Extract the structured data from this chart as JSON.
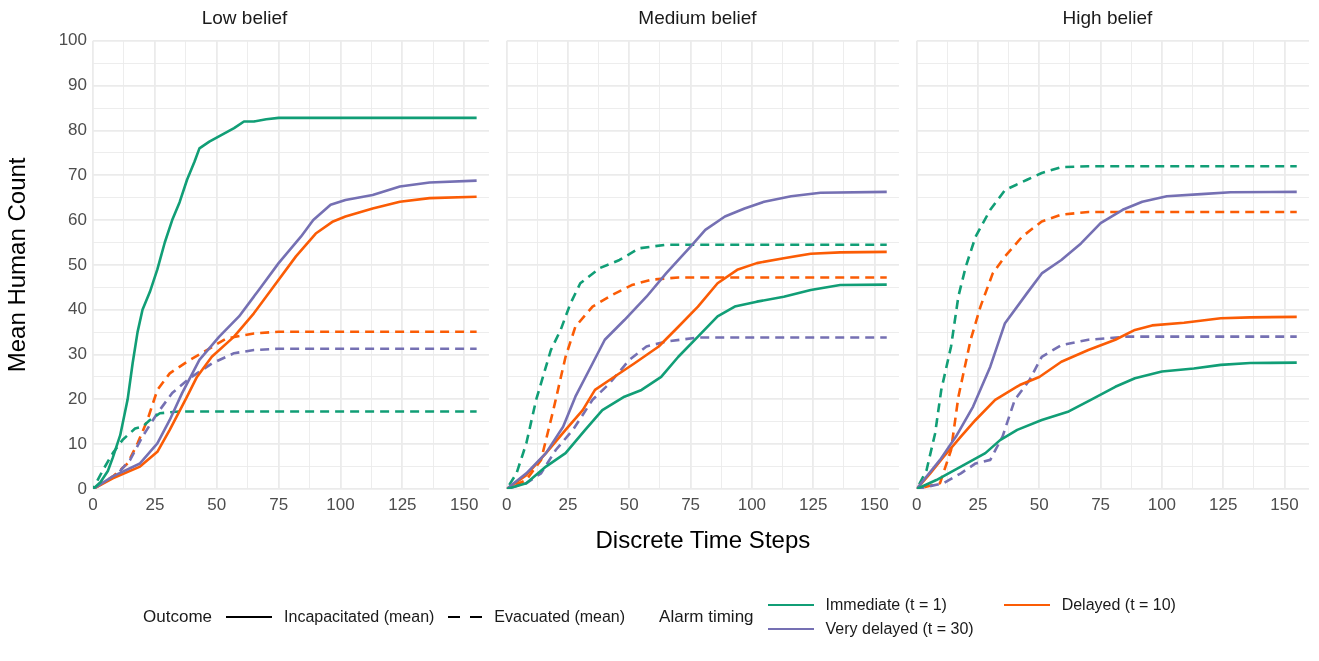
{
  "chart_data": [
    {
      "type": "line",
      "title": "Low belief",
      "ylabel": "Mean Human Count",
      "xlim": [
        0,
        160
      ],
      "ylim": [
        0,
        100
      ],
      "xticks": [
        0,
        {
          "value": 12.5,
          "label": null
        },
        25,
        {
          "value": 37.5,
          "label": null
        },
        50,
        {
          "value": 62.5,
          "label": null
        },
        75,
        {
          "value": 87.5,
          "label": null
        },
        100,
        {
          "value": 112.5,
          "label": null
        },
        125,
        {
          "value": 137.5,
          "label": null
        },
        150
      ],
      "yticks": [
        0,
        {
          "value": 5,
          "label": null
        },
        10,
        {
          "value": 15,
          "label": null
        },
        20,
        {
          "value": 25,
          "label": null
        },
        30,
        {
          "value": 35,
          "label": null
        },
        40,
        {
          "value": 45,
          "label": null
        },
        50,
        {
          "value": 55,
          "label": null
        },
        60,
        {
          "value": 65,
          "label": null
        },
        70,
        {
          "value": 75,
          "label": null
        },
        80,
        {
          "value": 85,
          "label": null
        },
        90,
        {
          "value": 95,
          "label": null
        },
        100
      ],
      "grid": true,
      "legend": "bottom",
      "legend_title": "Alarm timing",
      "annotations": [
        "Outcome",
        "Incapacitated (mean)",
        "Evacuated (mean)"
      ],
      "series": [
        {
          "name": "Immediate (t = 1)",
          "color": "#119e76",
          "line_style": "solid",
          "x": [
            0,
            3,
            6,
            8,
            11,
            14,
            16,
            18,
            20,
            23,
            26,
            29,
            32,
            35,
            38,
            41,
            43,
            47,
            52,
            57,
            61,
            65,
            70,
            75,
            155
          ],
          "values": [
            0,
            1.5,
            4,
            7,
            12,
            20,
            28,
            35,
            40,
            44,
            49,
            55,
            60,
            64,
            69,
            73,
            76,
            77.5,
            79,
            80.5,
            82,
            82,
            82.5,
            82.8,
            82.8
          ]
        },
        {
          "name": "Very delayed (t = 30)",
          "color": "#7570b3",
          "line_style": "solid",
          "x": [
            0,
            8,
            19,
            26,
            31,
            36,
            43,
            51,
            59,
            67,
            75,
            84,
            89,
            96,
            102,
            113,
            124,
            136,
            155
          ],
          "values": [
            0,
            2.8,
            5.7,
            10.2,
            15.4,
            21.4,
            28.8,
            34,
            38.5,
            44.4,
            50.4,
            56.3,
            60,
            63.4,
            64.5,
            65.6,
            67.5,
            68.4,
            68.8
          ]
        },
        {
          "name": "Delayed (t = 10)",
          "color": "#fb5c05",
          "line_style": "solid",
          "x": [
            0,
            8,
            19,
            26,
            31,
            38,
            42,
            48,
            57,
            65,
            73,
            82,
            90,
            97,
            102,
            113,
            124,
            136,
            155
          ],
          "values": [
            0,
            2.4,
            5,
            8.3,
            13.2,
            20.6,
            25,
            29.5,
            34,
            39.2,
            45.2,
            51.9,
            57,
            59.7,
            60.8,
            62.6,
            64.1,
            64.9,
            65.2
          ]
        },
        {
          "color": "#119e76",
          "line_style": "dashed",
          "x": [
            0,
            4,
            8,
            12,
            17,
            20,
            23,
            27,
            35,
            155
          ],
          "values": [
            0,
            4.2,
            8,
            11,
            13.5,
            13.9,
            15.4,
            16.9,
            17.3,
            17.3
          ]
        },
        {
          "color": "#7570b3",
          "line_style": "dashed",
          "x": [
            0,
            9.5,
            15,
            20,
            26,
            32,
            39,
            48,
            57,
            65,
            75,
            155
          ],
          "values": [
            0,
            3.1,
            6.5,
            11.7,
            16.9,
            21.4,
            24.7,
            28,
            30.3,
            31,
            31.3,
            31.3
          ]
        },
        {
          "color": "#fb5c05",
          "line_style": "dashed",
          "x": [
            0,
            8,
            14,
            18,
            22,
            26,
            31,
            38,
            46,
            54,
            65,
            75,
            155
          ],
          "values": [
            0,
            2.8,
            5.7,
            10.2,
            15.4,
            22.1,
            25.8,
            28.4,
            31,
            33.6,
            34.7,
            35.1,
            35.1
          ]
        }
      ]
    },
    {
      "type": "line",
      "title": "Medium belief",
      "xlabel": "Discrete Time Steps",
      "xlim": [
        0,
        160
      ],
      "ylim": [
        0,
        100
      ],
      "tick_labels": "x",
      "xticks": [
        0,
        {
          "value": 12.5,
          "label": null
        },
        25,
        {
          "value": 37.5,
          "label": null
        },
        50,
        {
          "value": 62.5,
          "label": null
        },
        75,
        {
          "value": 87.5,
          "label": null
        },
        100,
        {
          "value": 112.5,
          "label": null
        },
        125,
        {
          "value": 137.5,
          "label": null
        },
        150
      ],
      "yticks": [
        0,
        {
          "value": 5,
          "label": null
        },
        10,
        {
          "value": 15,
          "label": null
        },
        20,
        {
          "value": 25,
          "label": null
        },
        30,
        {
          "value": 35,
          "label": null
        },
        40,
        {
          "value": 45,
          "label": null
        },
        50,
        {
          "value": 55,
          "label": null
        },
        60,
        {
          "value": 65,
          "label": null
        },
        70,
        {
          "value": 75,
          "label": null
        },
        80,
        {
          "value": 85,
          "label": null
        },
        90,
        {
          "value": 95,
          "label": null
        },
        100
      ],
      "grid": true,
      "series": [
        {
          "color": "#119e76",
          "line_style": "solid",
          "x": [
            0,
            8,
            16,
            24,
            32,
            39,
            48,
            55,
            63,
            70,
            78,
            86,
            93,
            102,
            113,
            124,
            136,
            155
          ],
          "values": [
            0,
            1.3,
            5,
            8,
            13.2,
            17.6,
            20.6,
            22.1,
            25,
            29.5,
            34,
            38.5,
            40.7,
            41.8,
            42.9,
            44.4,
            45.5,
            45.6
          ]
        },
        {
          "color": "#7570b3",
          "line_style": "solid",
          "x": [
            0,
            8,
            16,
            23,
            28,
            35,
            40,
            48,
            57,
            65,
            75,
            81,
            89,
            97,
            105,
            116,
            128,
            155
          ],
          "values": [
            0,
            3.5,
            8,
            13.9,
            20.6,
            28,
            33.3,
            37.7,
            42.9,
            48.1,
            54.1,
            57.8,
            60.8,
            62.6,
            64.1,
            65.3,
            66.1,
            66.3
          ]
        },
        {
          "color": "#fb5c05",
          "line_style": "solid",
          "x": [
            0,
            8,
            16,
            24,
            31,
            36,
            43,
            52,
            62,
            70,
            78,
            86,
            94,
            102,
            113,
            124,
            136,
            155
          ],
          "values": [
            0,
            3.1,
            8,
            13.2,
            17.6,
            22.1,
            24.7,
            28,
            31.8,
            36.2,
            40.7,
            45.9,
            48.9,
            50.4,
            51.5,
            52.5,
            52.8,
            52.9
          ]
        },
        {
          "color": "#119e76",
          "line_style": "dashed",
          "x": [
            0,
            4,
            8,
            12,
            18,
            22,
            26,
            30,
            38,
            46,
            54,
            65,
            155
          ],
          "values": [
            0,
            3.5,
            10.2,
            19.9,
            31,
            35.5,
            41.4,
            45.9,
            49.3,
            51.1,
            53.7,
            54.5,
            54.5
          ]
        },
        {
          "color": "#7570b3",
          "line_style": "dashed",
          "x": [
            0,
            8,
            14,
            20,
            27,
            35,
            42,
            50,
            57,
            65,
            78,
            155
          ],
          "values": [
            0,
            1.3,
            3.5,
            8.7,
            13.2,
            19.9,
            23.6,
            28.8,
            31.8,
            32.9,
            33.8,
            33.8
          ]
        },
        {
          "color": "#fb5c05",
          "line_style": "dashed",
          "x": [
            0,
            8,
            14,
            19,
            24,
            28,
            35,
            43,
            51,
            59,
            70,
            155
          ],
          "values": [
            0,
            2,
            6.5,
            17.6,
            29.5,
            36.2,
            40.7,
            43.3,
            45.5,
            46.7,
            47.2,
            47.2
          ]
        }
      ]
    },
    {
      "type": "line",
      "title": "High belief",
      "xlim": [
        0,
        160
      ],
      "ylim": [
        0,
        100
      ],
      "tick_labels": "x",
      "xticks": [
        0,
        {
          "value": 12.5,
          "label": null
        },
        25,
        {
          "value": 37.5,
          "label": null
        },
        50,
        {
          "value": 62.5,
          "label": null
        },
        75,
        {
          "value": 87.5,
          "label": null
        },
        100,
        {
          "value": 112.5,
          "label": null
        },
        125,
        {
          "value": 137.5,
          "label": null
        },
        150
      ],
      "yticks": [
        0,
        {
          "value": 5,
          "label": null
        },
        10,
        {
          "value": 15,
          "label": null
        },
        20,
        {
          "value": 25,
          "label": null
        },
        30,
        {
          "value": 35,
          "label": null
        },
        40,
        {
          "value": 45,
          "label": null
        },
        50,
        {
          "value": 55,
          "label": null
        },
        60,
        {
          "value": 65,
          "label": null
        },
        70,
        {
          "value": 75,
          "label": null
        },
        80,
        {
          "value": 85,
          "label": null
        },
        90,
        {
          "value": 95,
          "label": null
        },
        100
      ],
      "grid": true,
      "series": [
        {
          "color": "#119e76",
          "line_style": "solid",
          "x": [
            0,
            8,
            18,
            28,
            34,
            41,
            51,
            62,
            71,
            81,
            89,
            100,
            113,
            124,
            136,
            155
          ],
          "values": [
            0,
            2,
            5,
            8,
            10.9,
            13.2,
            15.4,
            17.3,
            19.9,
            22.8,
            24.7,
            26.2,
            26.9,
            27.7,
            28.1,
            28.2
          ]
        },
        {
          "color": "#7570b3",
          "line_style": "solid",
          "x": [
            0,
            4,
            9.5,
            16,
            23,
            30,
            36,
            45,
            51,
            59,
            67,
            75,
            84,
            92,
            102,
            116,
            128,
            155
          ],
          "values": [
            0,
            2.8,
            6.5,
            11.7,
            18.4,
            27.3,
            37,
            43.7,
            48.1,
            51.1,
            54.8,
            59.3,
            62.3,
            64.1,
            65.3,
            65.8,
            66.2,
            66.3
          ]
        },
        {
          "color": "#fb5c05",
          "line_style": "solid",
          "x": [
            0,
            5.5,
            11,
            18,
            24,
            32,
            42,
            50,
            59,
            70,
            81,
            89,
            96,
            109,
            124,
            136,
            155
          ],
          "values": [
            0,
            3.5,
            7.2,
            11.7,
            15.4,
            19.9,
            23.2,
            25,
            28.4,
            31,
            33.3,
            35.5,
            36.5,
            37.1,
            38.1,
            38.3,
            38.4
          ]
        },
        {
          "color": "#119e76",
          "line_style": "dashed",
          "x": [
            0,
            4,
            7.5,
            10,
            14,
            17,
            20,
            24,
            30,
            36,
            45,
            51,
            59,
            70,
            155
          ],
          "values": [
            0,
            4.2,
            12.4,
            22.1,
            31.8,
            43,
            49.6,
            56.3,
            62.3,
            66.7,
            69,
            70.5,
            71.8,
            72,
            72
          ]
        },
        {
          "color": "#7570b3",
          "line_style": "dashed",
          "x": [
            0,
            11,
            18,
            24,
            30,
            35,
            40,
            46,
            51,
            59,
            70,
            86,
            155
          ],
          "values": [
            0,
            1.3,
            3.5,
            5.7,
            6.5,
            11.7,
            19.9,
            24.3,
            29.5,
            32.1,
            33.3,
            34,
            34
          ]
        },
        {
          "color": "#fb5c05",
          "line_style": "dashed",
          "x": [
            0,
            9.5,
            14,
            17,
            22,
            26,
            31,
            36,
            43,
            51,
            59,
            70,
            155
          ],
          "values": [
            0,
            1.3,
            8.7,
            20.6,
            33.3,
            40.7,
            48.1,
            51.9,
            56.3,
            59.7,
            61.2,
            61.8,
            61.8
          ]
        }
      ]
    }
  ]
}
